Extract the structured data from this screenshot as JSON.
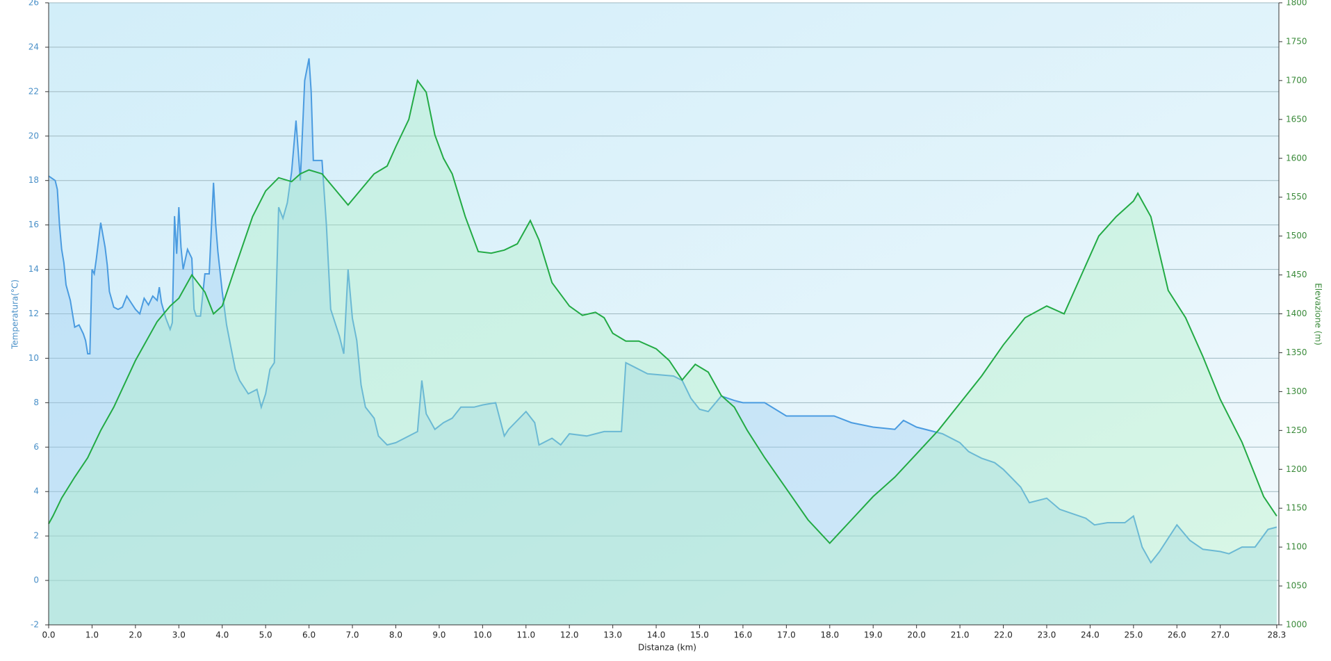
{
  "chart_data": {
    "type": "line",
    "xlabel": "Distanza  (km)",
    "ylabel": "Temperatura(°C)",
    "y2label": "Elevazione (m)",
    "xlim": [
      0,
      28.35
    ],
    "ylim": [
      -2,
      26
    ],
    "y2lim": [
      1000,
      1800
    ],
    "grid": true,
    "xticks": [
      {
        "value": 0,
        "label": "0.0"
      },
      {
        "value": 1,
        "label": "1.0"
      },
      {
        "value": 2,
        "label": "2.0"
      },
      {
        "value": 3,
        "label": "3.0"
      },
      {
        "value": 4,
        "label": "4.0"
      },
      {
        "value": 5,
        "label": "5.0"
      },
      {
        "value": 6,
        "label": "6.0"
      },
      {
        "value": 7,
        "label": "7.0"
      },
      {
        "value": 8,
        "label": "8.0"
      },
      {
        "value": 9,
        "label": "9.0"
      },
      {
        "value": 10,
        "label": "10.0"
      },
      {
        "value": 11,
        "label": "11.0"
      },
      {
        "value": 12,
        "label": "12.0"
      },
      {
        "value": 13,
        "label": "13.0"
      },
      {
        "value": 14,
        "label": "14.0"
      },
      {
        "value": 15,
        "label": "15.0"
      },
      {
        "value": 16,
        "label": "16.0"
      },
      {
        "value": 17,
        "label": "17.0"
      },
      {
        "value": 18,
        "label": "18.0"
      },
      {
        "value": 19,
        "label": "19.0"
      },
      {
        "value": 20,
        "label": "20.0"
      },
      {
        "value": 21,
        "label": "21.0"
      },
      {
        "value": 22,
        "label": "22.0"
      },
      {
        "value": 23,
        "label": "23.0"
      },
      {
        "value": 24,
        "label": "24.0"
      },
      {
        "value": 25,
        "label": "25.0"
      },
      {
        "value": 26,
        "label": "26.0"
      },
      {
        "value": 27,
        "label": "27.0"
      },
      {
        "value": 28.3,
        "label": "28.3"
      }
    ],
    "yticks": [
      -2,
      0,
      2,
      4,
      6,
      8,
      10,
      12,
      14,
      16,
      18,
      20,
      22,
      24,
      26
    ],
    "y2ticks": [
      1000,
      1050,
      1100,
      1150,
      1200,
      1250,
      1300,
      1350,
      1400,
      1450,
      1500,
      1550,
      1600,
      1650,
      1700,
      1750,
      1800
    ],
    "series": [
      {
        "color": "#4a9be0",
        "fill": "rgba(150,200,240,0.35)",
        "axis": "y",
        "x": [
          0,
          0.15,
          0.2,
          0.25,
          0.3,
          0.35,
          0.4,
          0.5,
          0.55,
          0.6,
          0.7,
          0.8,
          0.85,
          0.9,
          0.95,
          1.0,
          1.05,
          1.1,
          1.2,
          1.3,
          1.35,
          1.4,
          1.5,
          1.6,
          1.7,
          1.8,
          1.9,
          2.0,
          2.1,
          2.2,
          2.3,
          2.4,
          2.5,
          2.55,
          2.6,
          2.7,
          2.8,
          2.85,
          2.9,
          2.95,
          3.0,
          3.05,
          3.1,
          3.2,
          3.3,
          3.35,
          3.4,
          3.5,
          3.6,
          3.7,
          3.8,
          3.85,
          3.9,
          4.0,
          4.1,
          4.2,
          4.3,
          4.4,
          4.5,
          4.6,
          4.8,
          4.9,
          5.0,
          5.1,
          5.2,
          5.3,
          5.4,
          5.5,
          5.6,
          5.7,
          5.8,
          5.9,
          6.0,
          6.05,
          6.1,
          6.3,
          6.4,
          6.5,
          6.7,
          6.8,
          6.9,
          7.0,
          7.1,
          7.2,
          7.3,
          7.5,
          7.6,
          7.8,
          8.0,
          8.2,
          8.5,
          8.6,
          8.7,
          8.9,
          9.1,
          9.3,
          9.5,
          9.8,
          10.0,
          10.3,
          10.5,
          10.6,
          11.0,
          11.2,
          11.3,
          11.6,
          11.8,
          12.0,
          12.4,
          12.8,
          13.2,
          13.3,
          13.5,
          13.8,
          14.4,
          14.6,
          14.8,
          15.0,
          15.2,
          15.5,
          15.8,
          16.0,
          16.5,
          17.0,
          17.5,
          18.1,
          18.5,
          19.0,
          19.5,
          19.7,
          20.0,
          20.6,
          21.0,
          21.2,
          21.5,
          21.8,
          22.0,
          22.2,
          22.4,
          22.6,
          23.0,
          23.3,
          23.6,
          23.9,
          24.1,
          24.4,
          24.8,
          25.0,
          25.2,
          25.4,
          25.6,
          25.8,
          26.0,
          26.3,
          26.6,
          27.0,
          27.2,
          27.5,
          27.8,
          28.1,
          28.3
        ],
        "values": [
          18.2,
          18,
          17.6,
          16,
          14.9,
          14.3,
          13.3,
          12.6,
          12,
          11.4,
          11.5,
          11.1,
          10.8,
          10.2,
          10.2,
          14,
          13.8,
          14.5,
          16.1,
          15,
          14.2,
          13,
          12.3,
          12.2,
          12.3,
          12.8,
          12.5,
          12.2,
          12,
          12.7,
          12.4,
          12.8,
          12.6,
          13.2,
          12.5,
          11.8,
          11.3,
          11.6,
          16.4,
          14.7,
          16.8,
          15,
          14,
          14.9,
          14.5,
          12.2,
          11.9,
          11.9,
          13.8,
          13.8,
          17.9,
          16,
          14.8,
          13,
          11.5,
          10.5,
          9.5,
          9,
          8.7,
          8.4,
          8.6,
          7.8,
          8.4,
          9.5,
          9.8,
          16.8,
          16.3,
          17,
          18.4,
          20.7,
          18,
          22.5,
          23.5,
          22,
          18.9,
          18.9,
          16,
          12.2,
          11,
          10.2,
          14,
          11.8,
          10.8,
          8.8,
          7.8,
          7.3,
          6.5,
          6.1,
          6.2,
          6.4,
          6.7,
          9,
          7.5,
          6.8,
          7.1,
          7.3,
          7.8,
          7.8,
          7.9,
          8,
          6.5,
          6.8,
          7.6,
          7.1,
          6.1,
          6.4,
          6.1,
          6.6,
          6.5,
          6.7,
          6.7,
          9.8,
          9.6,
          9.3,
          9.2,
          9,
          8.2,
          7.7,
          7.6,
          8.3,
          8.1,
          8,
          8,
          7.4,
          7.4,
          7.4,
          7.1,
          6.9,
          6.8,
          7.2,
          6.9,
          6.6,
          6.2,
          5.8,
          5.5,
          5.3,
          5,
          4.6,
          4.2,
          3.5,
          3.7,
          3.2,
          3,
          2.8,
          2.5,
          2.6,
          2.6,
          2.9,
          1.5,
          0.8,
          1.3,
          1.9,
          2.5,
          1.8,
          1.4,
          1.3,
          1.2,
          1.5,
          1.5,
          2.3,
          2.4
        ]
      },
      {
        "color": "#22aa44",
        "fill": "rgba(170,240,190,0.35)",
        "axis": "y2",
        "x": [
          0,
          0.1,
          0.3,
          0.6,
          0.9,
          1.2,
          1.5,
          2.0,
          2.5,
          2.8,
          3.0,
          3.3,
          3.6,
          3.8,
          4.0,
          4.3,
          4.7,
          5.0,
          5.3,
          5.6,
          5.8,
          6.0,
          6.3,
          6.6,
          6.9,
          7.2,
          7.5,
          7.8,
          8.0,
          8.3,
          8.5,
          8.7,
          8.9,
          9.1,
          9.3,
          9.6,
          9.9,
          10.2,
          10.5,
          10.8,
          11.1,
          11.3,
          11.6,
          12.0,
          12.3,
          12.6,
          12.8,
          13.0,
          13.3,
          13.6,
          14.0,
          14.3,
          14.6,
          14.9,
          15.2,
          15.5,
          15.8,
          16.1,
          16.5,
          17.0,
          17.5,
          18.0,
          18.5,
          19.0,
          19.5,
          20.0,
          20.5,
          21.0,
          21.5,
          22.0,
          22.5,
          23.0,
          23.4,
          23.8,
          24.2,
          24.6,
          25.0,
          25.1,
          25.4,
          25.8,
          26.2,
          26.6,
          27.0,
          27.5,
          28.0,
          28.3
        ],
        "values": [
          1130,
          1140,
          1163,
          1190,
          1215,
          1250,
          1280,
          1340,
          1390,
          1410,
          1420,
          1450,
          1428,
          1400,
          1410,
          1460,
          1525,
          1558,
          1575,
          1570,
          1580,
          1585,
          1580,
          1560,
          1540,
          1560,
          1580,
          1590,
          1615,
          1650,
          1700,
          1685,
          1630,
          1600,
          1580,
          1525,
          1480,
          1478,
          1482,
          1490,
          1520,
          1495,
          1440,
          1410,
          1398,
          1402,
          1395,
          1375,
          1365,
          1365,
          1355,
          1340,
          1315,
          1335,
          1325,
          1295,
          1280,
          1250,
          1215,
          1175,
          1135,
          1105,
          1135,
          1165,
          1190,
          1220,
          1250,
          1285,
          1320,
          1360,
          1395,
          1410,
          1400,
          1450,
          1500,
          1525,
          1545,
          1555,
          1525,
          1430,
          1395,
          1345,
          1290,
          1235,
          1165,
          1140
        ]
      }
    ]
  }
}
